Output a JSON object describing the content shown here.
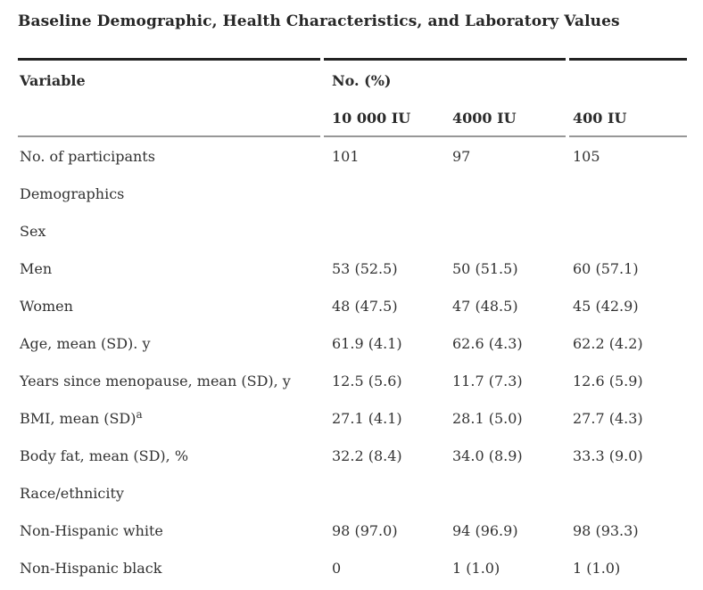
{
  "title": "Baseline Demographic, Health Characteristics, and Laboratory Values",
  "table": {
    "variable_header": "Variable",
    "group_header": "No. (%)",
    "columns": [
      "10 000 IU",
      "4000 IU",
      "400 IU"
    ],
    "rows": [
      {
        "label": "No. of participants",
        "values": [
          "101",
          "97",
          "105"
        ]
      },
      {
        "label": "Demographics",
        "values": [
          "",
          "",
          ""
        ]
      },
      {
        "label": "Sex",
        "values": [
          "",
          "",
          ""
        ]
      },
      {
        "label": "Men",
        "values": [
          "53 (52.5)",
          "50 (51.5)",
          "60 (57.1)"
        ]
      },
      {
        "label": "Women",
        "values": [
          "48 (47.5)",
          "47 (48.5)",
          "45 (42.9)"
        ]
      },
      {
        "label": "Age, mean (SD). y",
        "values": [
          "61.9 (4.1)",
          "62.6 (4.3)",
          "62.2 (4.2)"
        ]
      },
      {
        "label": "Years since menopause, mean (SD), y",
        "values": [
          "12.5 (5.6)",
          "11.7 (7.3)",
          "12.6 (5.9)"
        ]
      },
      {
        "label": "BMI, mean (SD)",
        "label_sup": "a",
        "values": [
          "27.1 (4.1)",
          "28.1 (5.0)",
          "27.7 (4.3)"
        ]
      },
      {
        "label": "Body fat, mean (SD), %",
        "values": [
          "32.2 (8.4)",
          "34.0 (8.9)",
          "33.3 (9.0)"
        ]
      },
      {
        "label": "Race/ethnicity",
        "values": [
          "",
          "",
          ""
        ]
      },
      {
        "label": "Non-Hispanic white",
        "values": [
          "98 (97.0)",
          "94 (96.9)",
          "98 (93.3)"
        ]
      },
      {
        "label": "Non-Hispanic black",
        "values": [
          "0",
          "1 (1.0)",
          "1 (1.0)"
        ]
      }
    ]
  },
  "colors": {
    "background": "#ffffff",
    "text": "#323232",
    "title_text": "#262626",
    "rule_dark": "#222222",
    "rule_gray": "#979797"
  }
}
